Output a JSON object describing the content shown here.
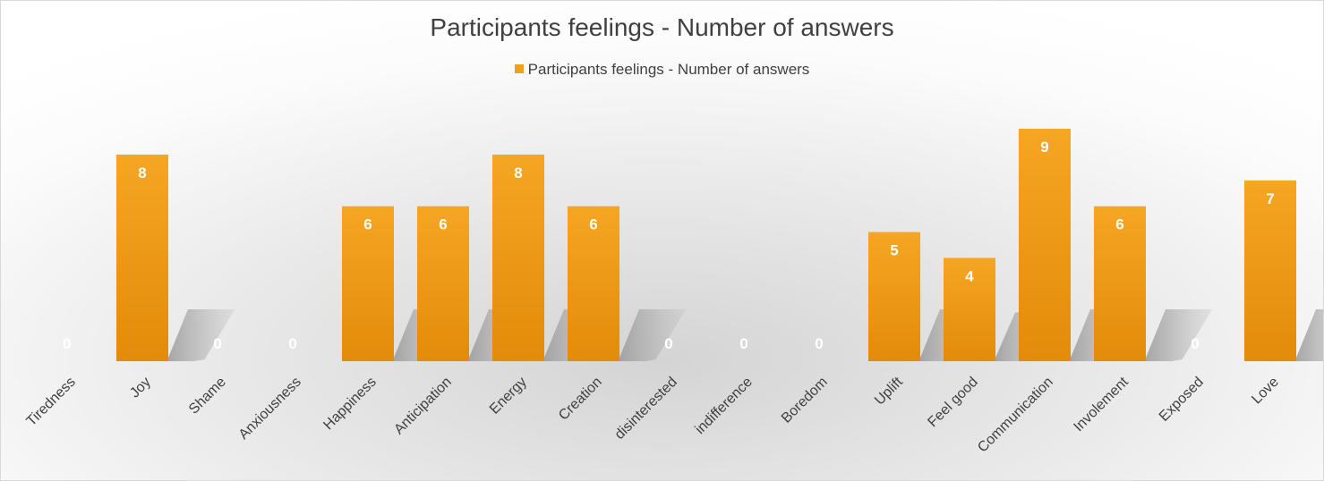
{
  "chart_data": {
    "type": "bar",
    "title": "Participants feelings - Number of answers",
    "xlabel": "",
    "ylabel": "",
    "legend": "top",
    "grid": false,
    "color": "#f0a020",
    "ylim": [
      0,
      9
    ],
    "categories": [
      "Tiredness",
      "Joy",
      "Shame",
      "Anxiousness",
      "Happiness",
      "Anticipation",
      "Energy",
      "Creation",
      "disinterested",
      "indifference",
      "Boredom",
      "Uplift",
      "Feel good",
      "Communication",
      "Involement",
      "Exposed",
      "Love"
    ],
    "series": [
      {
        "name": "Participants feelings - Number of answers",
        "values": [
          0,
          8,
          0,
          0,
          6,
          6,
          8,
          6,
          0,
          0,
          0,
          5,
          4,
          9,
          6,
          0,
          7
        ]
      }
    ]
  }
}
